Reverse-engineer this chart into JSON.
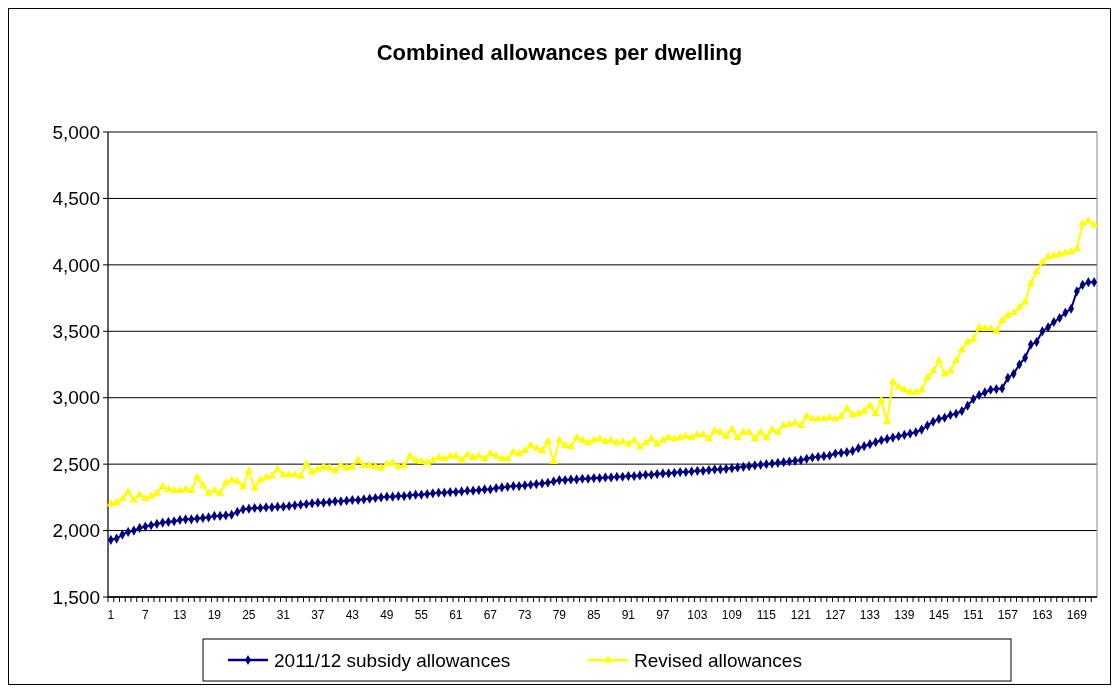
{
  "chart_data": {
    "type": "line",
    "title": "Combined allowances per dwelling",
    "categories": [
      "1",
      null,
      null,
      null,
      null,
      null,
      "7",
      null,
      null,
      null,
      null,
      null,
      "13",
      null,
      null,
      null,
      null,
      null,
      "19",
      null,
      null,
      null,
      null,
      null,
      "25",
      null,
      null,
      null,
      null,
      null,
      "31",
      null,
      null,
      null,
      null,
      null,
      "37",
      null,
      null,
      null,
      null,
      null,
      "43",
      null,
      null,
      null,
      null,
      null,
      "49",
      null,
      null,
      null,
      null,
      null,
      "55",
      null,
      null,
      null,
      null,
      null,
      "61",
      null,
      null,
      null,
      null,
      null,
      "67",
      null,
      null,
      null,
      null,
      null,
      "73",
      null,
      null,
      null,
      null,
      null,
      "79",
      null,
      null,
      null,
      null,
      null,
      "85",
      null,
      null,
      null,
      null,
      null,
      "91",
      null,
      null,
      null,
      null,
      null,
      "97",
      null,
      null,
      null,
      null,
      null,
      "103",
      null,
      null,
      null,
      null,
      null,
      "109",
      null,
      null,
      null,
      null,
      null,
      "115",
      null,
      null,
      null,
      null,
      null,
      "121",
      null,
      null,
      null,
      null,
      null,
      "127",
      null,
      null,
      null,
      null,
      null,
      "133",
      null,
      null,
      null,
      null,
      null,
      "139",
      null,
      null,
      null,
      null,
      null,
      "145",
      null,
      null,
      null,
      null,
      null,
      "151",
      null,
      null,
      null,
      null,
      null,
      "157",
      null,
      null,
      null,
      null,
      null,
      "163",
      null,
      null,
      null,
      null,
      null,
      "169",
      null,
      null,
      null
    ],
    "series": [
      {
        "name": "2011/12 subsidy allowances",
        "color": "#000080",
        "marker": "diamond",
        "values": [
          1930,
          1940,
          1970,
          1990,
          2000,
          2020,
          2030,
          2040,
          2050,
          2060,
          2065,
          2070,
          2080,
          2085,
          2085,
          2090,
          2095,
          2100,
          2110,
          2110,
          2115,
          2120,
          2140,
          2160,
          2165,
          2170,
          2170,
          2175,
          2175,
          2180,
          2180,
          2185,
          2190,
          2195,
          2200,
          2205,
          2210,
          2210,
          2215,
          2220,
          2220,
          2225,
          2230,
          2230,
          2235,
          2240,
          2245,
          2250,
          2255,
          2255,
          2260,
          2260,
          2265,
          2270,
          2270,
          2275,
          2280,
          2285,
          2285,
          2290,
          2290,
          2295,
          2300,
          2300,
          2305,
          2310,
          2310,
          2320,
          2325,
          2330,
          2335,
          2335,
          2340,
          2345,
          2350,
          2355,
          2360,
          2370,
          2380,
          2380,
          2385,
          2385,
          2390,
          2390,
          2395,
          2395,
          2400,
          2400,
          2405,
          2405,
          2410,
          2410,
          2415,
          2420,
          2420,
          2425,
          2430,
          2430,
          2435,
          2440,
          2440,
          2445,
          2450,
          2450,
          2455,
          2460,
          2460,
          2465,
          2470,
          2475,
          2480,
          2485,
          2490,
          2495,
          2500,
          2505,
          2510,
          2515,
          2520,
          2525,
          2530,
          2540,
          2550,
          2555,
          2560,
          2565,
          2580,
          2585,
          2590,
          2600,
          2620,
          2635,
          2650,
          2665,
          2680,
          2690,
          2700,
          2710,
          2720,
          2730,
          2740,
          2760,
          2790,
          2820,
          2840,
          2850,
          2870,
          2880,
          2900,
          2940,
          2990,
          3020,
          3040,
          3060,
          3065,
          3070,
          3150,
          3180,
          3250,
          3300,
          3400,
          3420,
          3500,
          3530,
          3570,
          3600,
          3640,
          3670,
          3800,
          3850,
          3870,
          3870
        ]
      },
      {
        "name": "Revised allowances",
        "color": "#ffff00",
        "marker": "triangle",
        "values": [
          2200,
          2210,
          2240,
          2290,
          2230,
          2270,
          2240,
          2260,
          2280,
          2330,
          2310,
          2300,
          2300,
          2310,
          2300,
          2400,
          2340,
          2280,
          2300,
          2280,
          2360,
          2380,
          2370,
          2330,
          2450,
          2320,
          2380,
          2400,
          2410,
          2460,
          2420,
          2420,
          2420,
          2410,
          2500,
          2440,
          2460,
          2480,
          2470,
          2450,
          2490,
          2470,
          2480,
          2530,
          2490,
          2490,
          2480,
          2470,
          2500,
          2510,
          2480,
          2490,
          2560,
          2530,
          2520,
          2510,
          2530,
          2550,
          2540,
          2560,
          2560,
          2530,
          2570,
          2550,
          2560,
          2540,
          2580,
          2560,
          2540,
          2540,
          2590,
          2580,
          2600,
          2640,
          2620,
          2600,
          2670,
          2520,
          2680,
          2640,
          2630,
          2700,
          2680,
          2660,
          2680,
          2690,
          2670,
          2680,
          2660,
          2670,
          2650,
          2680,
          2630,
          2660,
          2690,
          2650,
          2680,
          2700,
          2690,
          2700,
          2710,
          2700,
          2720,
          2720,
          2690,
          2750,
          2740,
          2710,
          2760,
          2700,
          2740,
          2740,
          2690,
          2740,
          2700,
          2760,
          2740,
          2790,
          2800,
          2810,
          2790,
          2860,
          2840,
          2840,
          2840,
          2850,
          2840,
          2860,
          2920,
          2870,
          2880,
          2900,
          2940,
          2880,
          2980,
          2820,
          3120,
          3080,
          3060,
          3040,
          3040,
          3060,
          3150,
          3200,
          3280,
          3180,
          3200,
          3280,
          3360,
          3420,
          3440,
          3530,
          3520,
          3520,
          3500,
          3580,
          3620,
          3640,
          3680,
          3720,
          3860,
          3950,
          4020,
          4060,
          4070,
          4080,
          4090,
          4100,
          4120,
          4310,
          4330,
          4300
        ]
      }
    ],
    "ylim": [
      1500,
      5000
    ],
    "yticks": [
      {
        "value": 1500,
        "label": "1,500"
      },
      {
        "value": 2000,
        "label": "2,000"
      },
      {
        "value": 2500,
        "label": "2,500"
      },
      {
        "value": 3000,
        "label": "3,000"
      },
      {
        "value": 3500,
        "label": "3,500"
      },
      {
        "value": 4000,
        "label": "4,000"
      },
      {
        "value": 4500,
        "label": "4,500"
      },
      {
        "value": 5000,
        "label": "5,000"
      }
    ],
    "grid": "y",
    "legend": "bottom",
    "line_style": "solid"
  }
}
